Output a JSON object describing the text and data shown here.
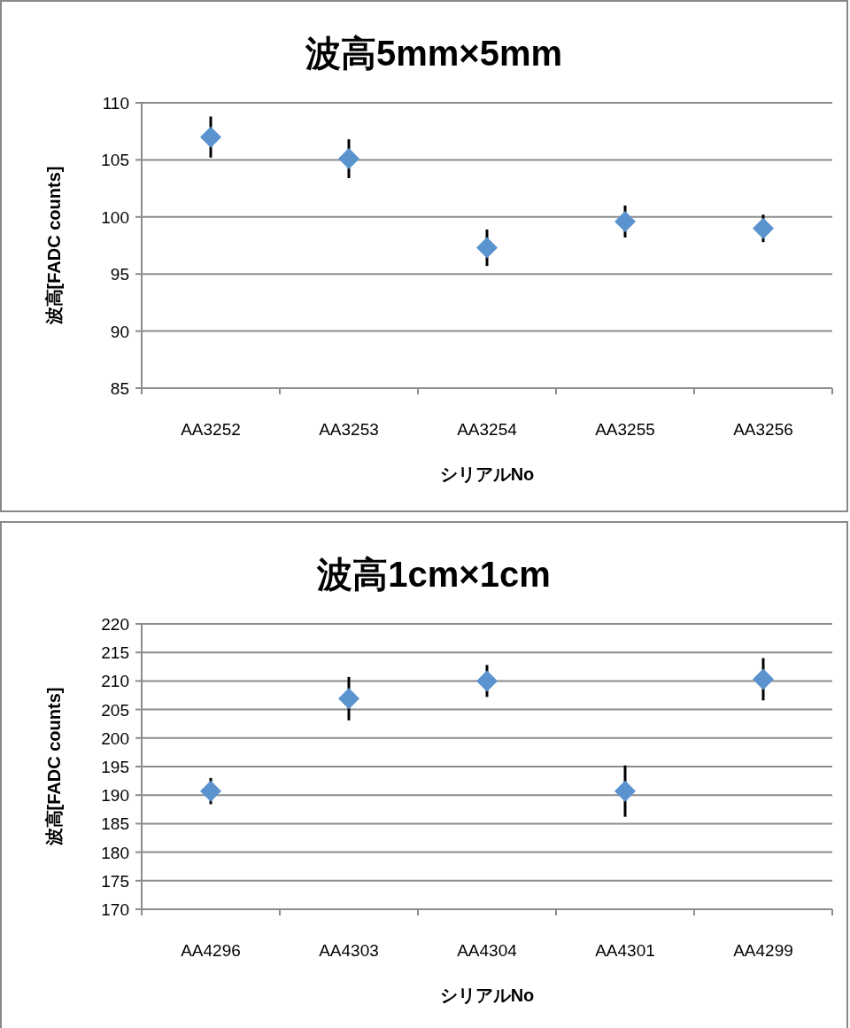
{
  "chart_data": [
    {
      "type": "scatter",
      "title": "波高5mm×5mm",
      "xlabel": "シリアルNo",
      "ylabel": "波高[FADC counts]",
      "categories": [
        "AA3252",
        "AA3253",
        "AA3254",
        "AA3255",
        "AA3256"
      ],
      "series": [
        {
          "color": "#5b93cf",
          "values": [
            107.0,
            105.1,
            97.3,
            99.6,
            99.0
          ],
          "errors": [
            1.8,
            1.7,
            1.6,
            1.4,
            1.2
          ]
        }
      ],
      "ylim": [
        85,
        110
      ],
      "yticks": [
        85,
        90,
        95,
        100,
        105,
        110
      ],
      "grid": "y",
      "marker": "diamond"
    },
    {
      "type": "scatter",
      "title": "波高1cm×1cm",
      "xlabel": "シリアルNo",
      "ylabel": "波高[FADC counts]",
      "categories": [
        "AA4296",
        "AA4303",
        "AA4304",
        "AA4301",
        "AA4299"
      ],
      "series": [
        {
          "color": "#5b93cf",
          "values": [
            190.7,
            206.9,
            210.0,
            190.7,
            210.3
          ],
          "errors": [
            2.3,
            3.8,
            2.8,
            4.5,
            3.7
          ]
        }
      ],
      "ylim": [
        170,
        220
      ],
      "yticks": [
        170,
        175,
        180,
        185,
        190,
        195,
        200,
        205,
        210,
        215,
        220
      ],
      "grid": "y",
      "marker": "diamond"
    }
  ]
}
